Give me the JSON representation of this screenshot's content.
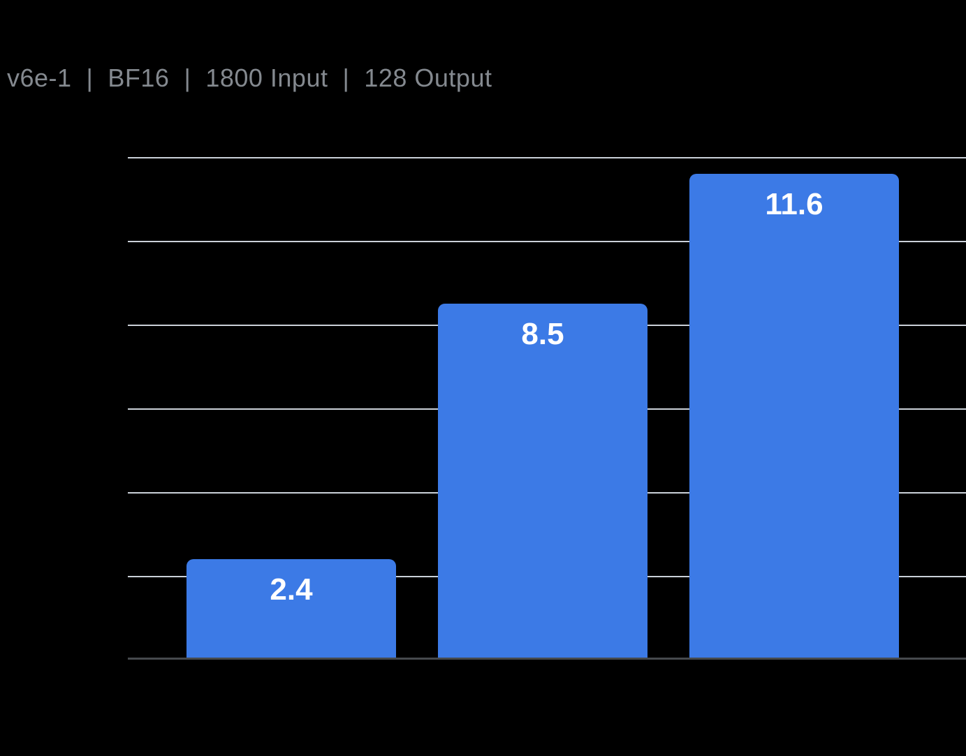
{
  "header": {
    "title": "v6e-1  |  BF16  |  1800 Input  |  128 Output"
  },
  "colors": {
    "background": "#000000",
    "bar": "#3C7AE6",
    "gridline": "#CBD1D9",
    "axis_line": "#46494D",
    "title_text": "#84898F",
    "bar_label_text": "#FFFFFF"
  },
  "chart_data": {
    "type": "bar",
    "title": "v6e-1  |  BF16  |  1800 Input  |  128 Output",
    "categories": [
      "",
      "",
      ""
    ],
    "values": [
      2.4,
      8.5,
      11.6
    ],
    "data_labels": [
      "2.4",
      "8.5",
      "11.6"
    ],
    "xlabel": "",
    "ylabel": "",
    "ylim": [
      0,
      12
    ],
    "gridline_interval": 2,
    "grid": true,
    "legend": false,
    "axis_tick_labels_visible": false,
    "bar_color": "#3C7AE6",
    "data_label_position": "inside-top"
  }
}
